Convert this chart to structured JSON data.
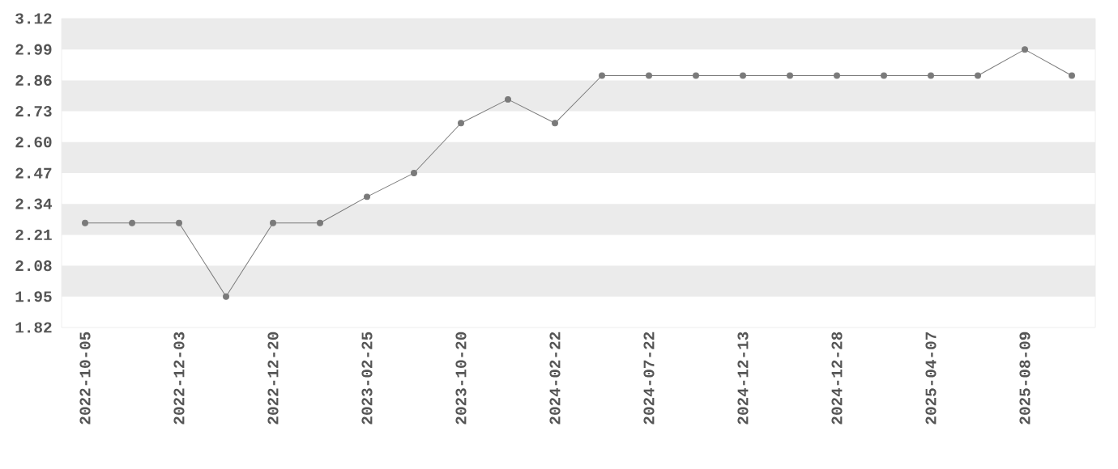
{
  "chart_data": {
    "type": "line",
    "categories": [
      "2022-10-05",
      null,
      "2022-12-03",
      null,
      "2022-12-20",
      null,
      "2023-02-25",
      null,
      "2023-10-20",
      null,
      "2024-02-22",
      null,
      "2024-07-22",
      null,
      "2024-12-13",
      null,
      "2024-12-28",
      null,
      "2025-04-07",
      null,
      "2025-08-09",
      null
    ],
    "values": [
      2.26,
      2.26,
      2.26,
      1.95,
      2.26,
      2.26,
      2.37,
      2.47,
      2.68,
      2.78,
      2.68,
      2.88,
      2.88,
      2.88,
      2.88,
      2.88,
      2.88,
      2.88,
      2.88,
      2.88,
      2.99,
      2.88
    ],
    "color": "#7a7a7a",
    "marker": "circle",
    "line_style": "solid",
    "ylim": [
      1.82,
      3.12
    ],
    "bands": [
      {
        "axis": "y",
        "from": 2.99,
        "to": 3.12,
        "color": "#ebebeb"
      },
      {
        "axis": "y",
        "from": 2.73,
        "to": 2.86,
        "color": "#ebebeb"
      },
      {
        "axis": "y",
        "from": 2.47,
        "to": 2.6,
        "color": "#ebebeb"
      },
      {
        "axis": "y",
        "from": 2.21,
        "to": 2.34,
        "color": "#ebebeb"
      },
      {
        "axis": "y",
        "from": 1.95,
        "to": 2.08,
        "color": "#ebebeb"
      }
    ],
    "yticks": [
      1.82,
      1.95,
      2.08,
      2.21,
      2.34,
      2.47,
      {
        "value": 2.6,
        "label": "2.60"
      },
      2.73,
      2.86,
      2.99,
      3.12
    ]
  }
}
